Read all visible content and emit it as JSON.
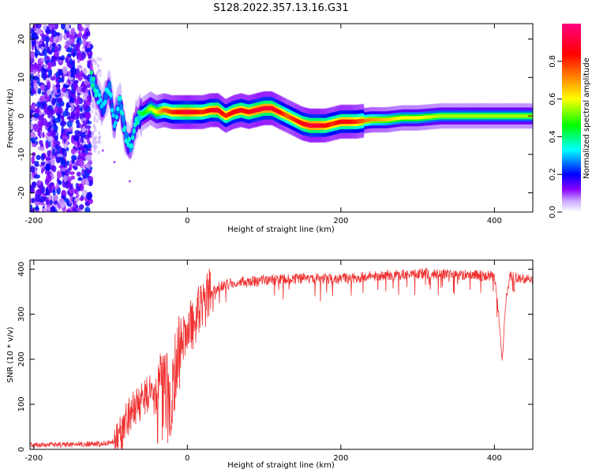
{
  "title": "S128.2022.357.13.16.G31",
  "chart_data": [
    {
      "type": "heatmap",
      "xlabel": "Height of straight line (km)",
      "ylabel": "Frequency (Hz)",
      "xlim": [
        -205,
        450
      ],
      "ylim": [
        -25,
        24
      ],
      "x_tick_labels": [
        "-200",
        "0",
        "200",
        "400"
      ],
      "x_ticks": [
        -200,
        0,
        200,
        400
      ],
      "y_tick_labels": [
        "-20",
        "-10",
        "0",
        "10",
        "20"
      ],
      "y_ticks": [
        -20,
        -10,
        0,
        10,
        20
      ],
      "colorbar": {
        "label": "Normalized spectral amplitude",
        "range": [
          0,
          1
        ],
        "tick_labels": [
          "0.0",
          "0.2",
          "0.4",
          "0.6",
          "0.8"
        ],
        "ticks": [
          0,
          0.2,
          0.4,
          0.6,
          0.8
        ],
        "colors": [
          "#ffffff",
          "#8b00ff",
          "#0000ff",
          "#00ffff",
          "#00ff00",
          "#ffff00",
          "#ff8000",
          "#ff0000",
          "#ff0080"
        ]
      },
      "noise_region_x": [
        -205,
        -125
      ],
      "ridge": {
        "x": [
          -125,
          -118,
          -110,
          -102,
          -95,
          -88,
          -80,
          -74,
          -68,
          -62,
          -55,
          -48,
          -40,
          -30,
          -20,
          -10,
          0,
          10,
          20,
          30,
          40,
          50,
          60,
          70,
          80,
          90,
          100,
          110,
          120,
          130,
          140,
          150,
          160,
          170,
          180,
          190,
          200,
          210,
          220,
          240,
          260,
          280,
          300,
          330,
          360,
          400,
          450
        ],
        "y": [
          10,
          6,
          2,
          8,
          -2,
          4,
          -6,
          -8,
          -2,
          0,
          1,
          2,
          1,
          1.5,
          1,
          1,
          1,
          1,
          1,
          1.5,
          1.5,
          0,
          1,
          1.5,
          1,
          1.5,
          2,
          2,
          1,
          0,
          -1,
          -2,
          -2.5,
          -2.5,
          -2.5,
          -2,
          -1.5,
          -1.5,
          -1.5,
          -1,
          -1,
          -0.5,
          -0.5,
          0,
          0,
          0,
          0
        ],
        "amplitude": [
          0.4,
          0.35,
          0.3,
          0.35,
          0.3,
          0.35,
          0.35,
          0.35,
          0.35,
          0.4,
          0.45,
          0.55,
          0.6,
          0.75,
          0.8,
          0.85,
          0.9,
          0.85,
          0.8,
          0.85,
          0.9,
          0.8,
          0.85,
          0.85,
          0.85,
          0.9,
          0.9,
          0.9,
          0.85,
          0.75,
          0.8,
          0.85,
          0.9,
          0.9,
          0.85,
          0.8,
          0.85,
          0.85,
          0.8,
          0.7,
          0.65,
          0.6,
          0.6,
          0.55,
          0.55,
          0.55,
          0.55
        ]
      }
    },
    {
      "type": "line",
      "xlabel": "Height of straight line (km)",
      "ylabel": "SNR (10 * v/v)",
      "xlim": [
        -205,
        450
      ],
      "ylim": [
        0,
        420
      ],
      "x_tick_labels": [
        "-200",
        "0",
        "200",
        "400"
      ],
      "x_ticks": [
        -200,
        0,
        200,
        400
      ],
      "y_tick_labels": [
        "0",
        "100",
        "200",
        "300",
        "400"
      ],
      "y_ticks": [
        0,
        100,
        200,
        300,
        400
      ],
      "color": "#f03030",
      "x": [
        -205,
        -150,
        -120,
        -100,
        -90,
        -80,
        -70,
        -60,
        -50,
        -40,
        -30,
        -20,
        -10,
        0,
        10,
        20,
        30,
        40,
        60,
        80,
        100,
        150,
        200,
        250,
        300,
        350,
        400,
        405,
        410,
        415,
        420,
        430,
        450
      ],
      "y": [
        10,
        10,
        12,
        14,
        25,
        60,
        90,
        110,
        125,
        120,
        110,
        120,
        230,
        260,
        290,
        320,
        345,
        360,
        370,
        372,
        375,
        380,
        378,
        385,
        390,
        388,
        385,
        310,
        195,
        330,
        385,
        380,
        375
      ]
    }
  ]
}
